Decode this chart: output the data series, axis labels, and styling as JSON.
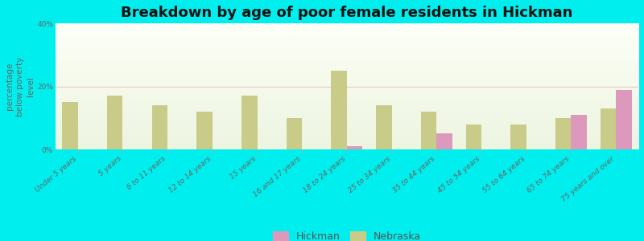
{
  "title": "Breakdown by age of poor female residents in Hickman",
  "ylabel": "percentage\nbelow poverty\nlevel",
  "categories": [
    "Under 5 years",
    "5 years",
    "6 to 11 years",
    "12 to 14 years",
    "15 years",
    "16 and 17 years",
    "18 to 24 years",
    "25 to 34 years",
    "35 to 44 years",
    "45 to 54 years",
    "55 to 64 years",
    "65 to 74 years",
    "75 years and over"
  ],
  "hickman_values": [
    0,
    0,
    0,
    0,
    0,
    0,
    1.0,
    0,
    5.0,
    0,
    0,
    11.0,
    19.0
  ],
  "nebraska_values": [
    15.0,
    17.0,
    14.0,
    12.0,
    17.0,
    10.0,
    25.0,
    14.0,
    12.0,
    8.0,
    8.0,
    10.0,
    13.0
  ],
  "hickman_color": "#dd99bb",
  "nebraska_color": "#c8cc88",
  "background_color": "#00eeee",
  "ylim": [
    0,
    40
  ],
  "yticks": [
    0,
    20,
    40
  ],
  "ytick_labels": [
    "0%",
    "20%",
    "40%"
  ],
  "bar_width": 0.35,
  "title_fontsize": 13,
  "axis_label_fontsize": 7.5,
  "tick_fontsize": 6.5,
  "legend_fontsize": 9,
  "plot_bg_color_top": "#f5f8e8",
  "plot_bg_color_bottom": "#fafdf5",
  "grid_line_color": "#e8c8c8",
  "zero_line_color": "#bbbbbb"
}
